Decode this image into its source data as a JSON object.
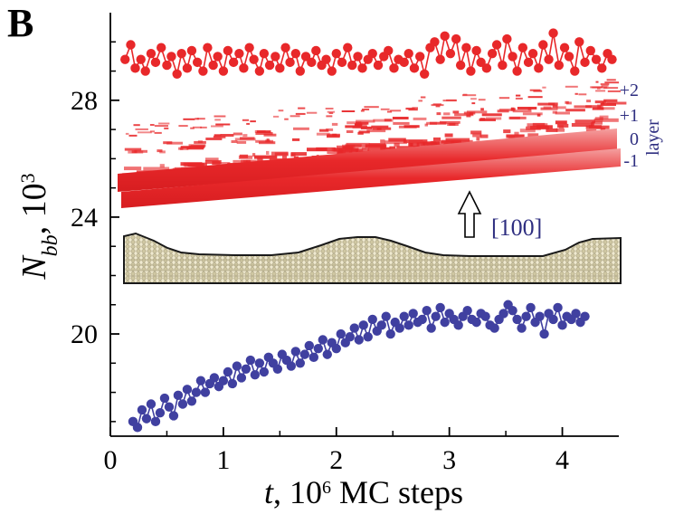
{
  "panel_label": "B",
  "chart_data": {
    "type": "scatter",
    "xlabel_var": "t",
    "xlabel_rest": ", 10",
    "xlabel_exp": "6",
    "xlabel_units": " MC steps",
    "ylabel_var": "N",
    "ylabel_sub": "bb",
    "ylabel_rest": ", 10",
    "ylabel_exp": "3",
    "xlim": [
      0,
      4.5
    ],
    "ylim": [
      16.5,
      31
    ],
    "x_ticks": [
      0,
      1,
      2,
      3,
      4
    ],
    "y_ticks": [
      20,
      24,
      28
    ],
    "x_tick_labels": [
      "0",
      "1",
      "2",
      "3",
      "4"
    ],
    "y_tick_labels": [
      "20",
      "24",
      "28"
    ],
    "series": [
      {
        "color": "#e8282a",
        "x": [
          0.13,
          0.18,
          0.22,
          0.27,
          0.31,
          0.36,
          0.4,
          0.45,
          0.5,
          0.54,
          0.59,
          0.63,
          0.68,
          0.72,
          0.77,
          0.82,
          0.86,
          0.91,
          0.95,
          1.0,
          1.04,
          1.09,
          1.14,
          1.18,
          1.23,
          1.27,
          1.32,
          1.36,
          1.41,
          1.46,
          1.5,
          1.55,
          1.59,
          1.64,
          1.68,
          1.73,
          1.78,
          1.82,
          1.87,
          1.91,
          1.96,
          2.0,
          2.05,
          2.1,
          2.14,
          2.19,
          2.23,
          2.28,
          2.32,
          2.37,
          2.42,
          2.46,
          2.51,
          2.55,
          2.6,
          2.64,
          2.69,
          2.74,
          2.78,
          2.83,
          2.87,
          2.92,
          2.96,
          3.01,
          3.06,
          3.1,
          3.15,
          3.19,
          3.24,
          3.28,
          3.33,
          3.38,
          3.42,
          3.47,
          3.51,
          3.56,
          3.6,
          3.65,
          3.7,
          3.74,
          3.79,
          3.83,
          3.88,
          3.92,
          3.97,
          4.02,
          4.06,
          4.11,
          4.15,
          4.2,
          4.25,
          4.3,
          4.35,
          4.4,
          4.44
        ],
        "y": [
          29.4,
          29.9,
          29.1,
          29.4,
          29.0,
          29.6,
          29.3,
          29.8,
          29.2,
          29.5,
          28.9,
          29.6,
          29.1,
          29.7,
          29.3,
          29.0,
          29.8,
          29.2,
          29.5,
          29.0,
          29.7,
          29.3,
          29.6,
          29.1,
          29.8,
          29.4,
          29.0,
          29.6,
          29.2,
          29.5,
          29.1,
          29.8,
          29.3,
          29.6,
          29.0,
          29.5,
          29.3,
          29.7,
          29.2,
          29.4,
          29.0,
          29.6,
          29.3,
          29.8,
          29.2,
          29.5,
          29.1,
          29.4,
          29.6,
          29.2,
          29.5,
          29.7,
          29.1,
          29.4,
          29.3,
          29.6,
          29.1,
          29.5,
          28.9,
          29.8,
          30.0,
          29.4,
          30.2,
          29.6,
          30.1,
          29.2,
          29.8,
          29.0,
          29.7,
          29.3,
          29.1,
          29.6,
          29.9,
          29.2,
          30.1,
          29.5,
          29.0,
          29.8,
          29.3,
          29.6,
          29.1,
          29.9,
          29.4,
          30.3,
          29.2,
          29.8,
          29.5,
          29.0,
          30.0,
          29.3,
          29.7,
          29.4,
          29.1,
          29.6,
          29.4
        ]
      },
      {
        "color": "#4040a0",
        "x": [
          0.2,
          0.24,
          0.28,
          0.32,
          0.36,
          0.4,
          0.44,
          0.48,
          0.52,
          0.56,
          0.6,
          0.64,
          0.68,
          0.72,
          0.76,
          0.8,
          0.84,
          0.88,
          0.92,
          0.96,
          1.0,
          1.04,
          1.08,
          1.12,
          1.16,
          1.2,
          1.24,
          1.28,
          1.32,
          1.36,
          1.4,
          1.44,
          1.48,
          1.52,
          1.56,
          1.6,
          1.64,
          1.68,
          1.72,
          1.76,
          1.8,
          1.84,
          1.88,
          1.92,
          1.96,
          2.0,
          2.04,
          2.08,
          2.12,
          2.16,
          2.2,
          2.24,
          2.28,
          2.32,
          2.36,
          2.4,
          2.44,
          2.48,
          2.52,
          2.56,
          2.6,
          2.64,
          2.68,
          2.72,
          2.76,
          2.8,
          2.84,
          2.88,
          2.92,
          2.96,
          3.0,
          3.04,
          3.08,
          3.12,
          3.16,
          3.2,
          3.24,
          3.28,
          3.32,
          3.36,
          3.4,
          3.44,
          3.48,
          3.52,
          3.56,
          3.6,
          3.64,
          3.68,
          3.72,
          3.76,
          3.8,
          3.84,
          3.88,
          3.92,
          3.96,
          4.0,
          4.04,
          4.08,
          4.12,
          4.16,
          4.2
        ],
        "y": [
          17.0,
          16.8,
          17.4,
          17.1,
          17.6,
          17.0,
          17.3,
          17.8,
          17.5,
          17.2,
          17.9,
          17.6,
          18.1,
          17.7,
          18.0,
          18.4,
          18.0,
          18.3,
          18.5,
          18.2,
          18.4,
          18.7,
          18.3,
          18.9,
          18.5,
          18.8,
          19.1,
          18.6,
          19.0,
          18.7,
          19.2,
          19.0,
          18.8,
          19.3,
          19.1,
          18.9,
          19.4,
          19.0,
          19.3,
          19.6,
          19.2,
          19.5,
          19.8,
          19.3,
          19.7,
          19.5,
          20.0,
          19.7,
          19.9,
          20.2,
          19.8,
          20.3,
          19.9,
          20.5,
          20.1,
          20.3,
          20.6,
          20.0,
          20.4,
          20.2,
          20.6,
          20.3,
          20.7,
          20.4,
          20.5,
          20.8,
          20.2,
          20.6,
          20.9,
          20.4,
          20.7,
          20.5,
          20.3,
          20.6,
          20.8,
          20.5,
          20.4,
          20.7,
          20.6,
          20.3,
          20.2,
          20.5,
          20.7,
          21.0,
          20.8,
          20.5,
          20.2,
          20.6,
          20.9,
          20.4,
          20.6,
          20.0,
          20.7,
          20.5,
          20.9,
          20.3,
          20.6,
          20.5,
          20.7,
          20.4,
          20.6
        ]
      }
    ]
  },
  "inset": {
    "layer_labels": [
      "+2",
      "+1",
      "0",
      "-1"
    ],
    "layer_title": "layer",
    "direction_label": "[100]",
    "slab_color": "#e8282a",
    "cross_section_color": "#d9d3b4",
    "annotation_color": "#2e2e80"
  }
}
